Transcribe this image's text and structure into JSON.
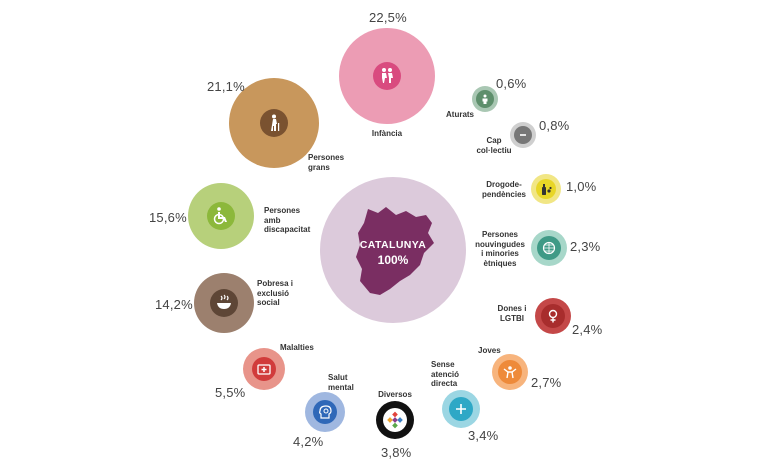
{
  "center": {
    "name": "CATALUNYA",
    "value": "100%",
    "color": "#dccadb",
    "map_color": "#7a2e62"
  },
  "groups": [
    {
      "key": "infancia",
      "label": "Infància",
      "value": "22,5%",
      "color": "#ec9cb4",
      "icon": "children-icon"
    },
    {
      "key": "persones-grans",
      "label": "Persones\ngrans",
      "value": "21,1%",
      "color": "#c8975c",
      "icon": "elderly-person-icon"
    },
    {
      "key": "discapacitat",
      "label": "Persones\namb\ndiscapacitat",
      "value": "15,6%",
      "color": "#b7d07b",
      "icon": "wheelchair-icon"
    },
    {
      "key": "pobresa",
      "label": "Pobresa i\nexclusió\nsocial",
      "value": "14,2%",
      "color": "#9c806e",
      "icon": "soup-bowl-icon"
    },
    {
      "key": "malalties",
      "label": "Malalties",
      "value": "5,5%",
      "color": "#e8948a",
      "icon": "first-aid-kit-icon"
    },
    {
      "key": "salut-mental",
      "label": "Salut\nmental",
      "value": "4,2%",
      "color": "#9fb7e0",
      "icon": "head-brain-icon"
    },
    {
      "key": "diversos",
      "label": "Diversos",
      "value": "3,8%",
      "color": "#111111",
      "icon": "diamond-mosaic-icon"
    },
    {
      "key": "sense-atencio",
      "label": "Sense\natenció\ndirecta",
      "value": "3,4%",
      "color": "#9bd6e3",
      "icon": "plus-icon"
    },
    {
      "key": "joves",
      "label": "Joves",
      "value": "2,7%",
      "color": "#f7b47d",
      "icon": "youth-icon"
    },
    {
      "key": "dones-lgtbi",
      "label": "Dones i\nLGTBI",
      "value": "2,4%",
      "color": "#c44848",
      "icon": "female-symbol-icon"
    },
    {
      "key": "persones-nouvingudes",
      "label": "Persones\nnouvingudes\ni minories\nètniques",
      "value": "2,3%",
      "color": "#a7d7c9",
      "icon": "globe-icon"
    },
    {
      "key": "drogodependencies",
      "label": "Drogode-\npendències",
      "value": "1,0%",
      "color": "#f1e685",
      "icon": "bottle-pills-icon"
    },
    {
      "key": "cap-collectiu",
      "label": "Cap\ncol·lectiu",
      "value": "0,8%",
      "color": "#cfcfcf",
      "icon": "minus-icon"
    },
    {
      "key": "aturats",
      "label": "Aturats",
      "value": "0,6%",
      "color": "#a9c7b3",
      "icon": "unemployed-person-icon"
    }
  ]
}
